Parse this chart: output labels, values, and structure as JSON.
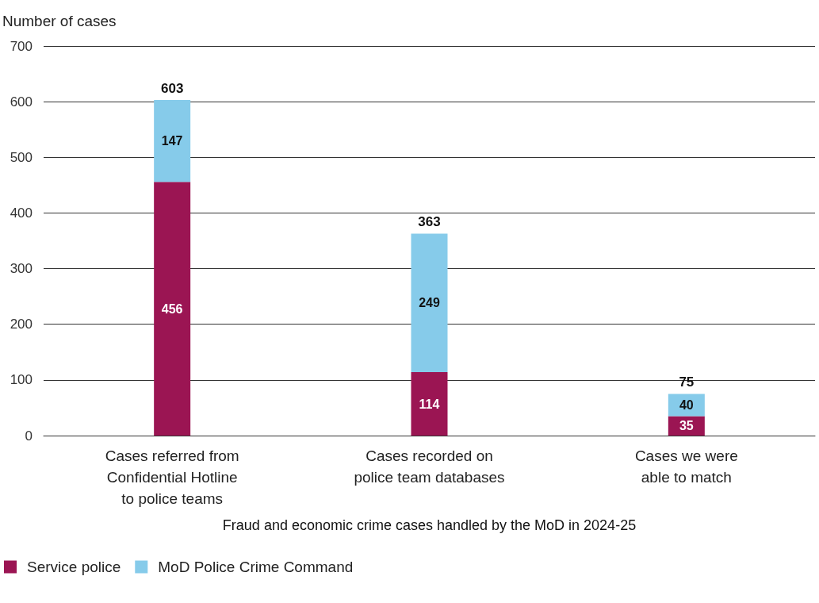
{
  "chart_data": {
    "type": "bar",
    "stacked": true,
    "ylabel": "Number of cases",
    "xlabel": "Fraud and economic crime cases handled by the MoD in 2024-25",
    "categories": [
      "Cases referred from\nConfidential Hotline\nto police teams",
      "Cases recorded on\npolice team databases",
      "Cases we were\nable to match"
    ],
    "series": [
      {
        "name": "Service police",
        "color": "#9b1553",
        "values": [
          456,
          114,
          35
        ]
      },
      {
        "name": "MoD Police Crime Command",
        "color": "#86cbea",
        "values": [
          147,
          249,
          40
        ]
      }
    ],
    "ylim": [
      0,
      700
    ],
    "yticks": [
      0,
      100,
      200,
      300,
      400,
      500,
      600,
      700
    ],
    "grid": "y",
    "legend": "bottom left",
    "data_labels": true,
    "totals": [
      "603",
      "363",
      "75"
    ]
  }
}
